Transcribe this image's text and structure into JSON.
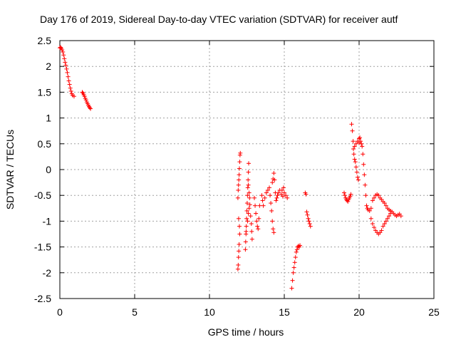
{
  "chart_data": {
    "type": "scatter",
    "title": "Day 176 of 2019, Sidereal Day-to-day VTEC variation (SDTVAR) for receiver autf",
    "xlabel": "GPS time / hours",
    "ylabel": "SDTVAR / TECUs",
    "xlim": [
      0,
      25
    ],
    "ylim": [
      -2.5,
      2.5
    ],
    "x_ticks": [
      0,
      5,
      10,
      15,
      20,
      25
    ],
    "y_ticks": [
      2.5,
      2,
      1.5,
      1,
      0.5,
      0,
      -0.5,
      -1,
      -1.5,
      -2,
      -2.5
    ],
    "x_tick_labels": [
      "0",
      "5",
      "10",
      "15",
      "20",
      "25"
    ],
    "y_tick_labels": [
      "2.5",
      "2",
      "1.5",
      "1",
      "0.5",
      "0",
      "-0.5",
      "-1",
      "-1.5",
      "-2",
      "-2.5"
    ],
    "grid": true,
    "marker": "+",
    "marker_color": "#ff0000",
    "series": [
      {
        "name": "SDTVAR",
        "points": [
          [
            0.0,
            2.36
          ],
          [
            0.05,
            2.37
          ],
          [
            0.1,
            2.35
          ],
          [
            0.15,
            2.32
          ],
          [
            0.2,
            2.28
          ],
          [
            0.25,
            2.22
          ],
          [
            0.3,
            2.15
          ],
          [
            0.35,
            2.08
          ],
          [
            0.4,
            2.02
          ],
          [
            0.45,
            1.95
          ],
          [
            0.5,
            1.88
          ],
          [
            0.55,
            1.8
          ],
          [
            0.6,
            1.72
          ],
          [
            0.65,
            1.65
          ],
          [
            0.7,
            1.58
          ],
          [
            0.75,
            1.52
          ],
          [
            0.8,
            1.47
          ],
          [
            0.85,
            1.44
          ],
          [
            0.95,
            1.42
          ],
          [
            1.5,
            1.5
          ],
          [
            1.55,
            1.48
          ],
          [
            1.6,
            1.45
          ],
          [
            1.65,
            1.42
          ],
          [
            1.7,
            1.38
          ],
          [
            1.75,
            1.35
          ],
          [
            1.8,
            1.31
          ],
          [
            1.85,
            1.28
          ],
          [
            1.9,
            1.25
          ],
          [
            1.95,
            1.22
          ],
          [
            2.0,
            1.2
          ],
          [
            2.05,
            1.18
          ],
          [
            11.9,
            -1.93
          ],
          [
            11.92,
            -1.85
          ],
          [
            11.94,
            -1.7
          ],
          [
            11.96,
            -1.58
          ],
          [
            11.98,
            -1.45
          ],
          [
            11.9,
            -0.55
          ],
          [
            11.92,
            -0.4
          ],
          [
            11.94,
            -0.3
          ],
          [
            11.96,
            -0.2
          ],
          [
            11.98,
            -0.1
          ],
          [
            12.0,
            0.02
          ],
          [
            12.02,
            0.15
          ],
          [
            12.04,
            0.28
          ],
          [
            12.06,
            0.32
          ],
          [
            11.95,
            -0.95
          ],
          [
            12.0,
            -1.1
          ],
          [
            12.02,
            -1.25
          ],
          [
            12.4,
            -1.55
          ],
          [
            12.42,
            -1.4
          ],
          [
            12.44,
            -1.25
          ],
          [
            12.46,
            -1.1
          ],
          [
            12.48,
            -0.95
          ],
          [
            12.5,
            -0.8
          ],
          [
            12.52,
            -0.65
          ],
          [
            12.54,
            -0.5
          ],
          [
            12.56,
            -0.35
          ],
          [
            12.58,
            -0.2
          ],
          [
            12.6,
            -0.05
          ],
          [
            12.62,
            0.12
          ],
          [
            12.45,
            -1.2
          ],
          [
            12.55,
            -1.0
          ],
          [
            12.6,
            -0.85
          ],
          [
            12.65,
            -0.75
          ],
          [
            12.7,
            -0.68
          ],
          [
            12.75,
            -0.9
          ],
          [
            12.8,
            -1.05
          ],
          [
            12.82,
            -1.2
          ],
          [
            12.85,
            -1.35
          ],
          [
            12.6,
            -0.3
          ],
          [
            12.65,
            -0.45
          ],
          [
            12.68,
            -0.55
          ],
          [
            13.0,
            -0.55
          ],
          [
            13.05,
            -0.7
          ],
          [
            13.1,
            -0.85
          ],
          [
            13.15,
            -1.0
          ],
          [
            13.2,
            -1.1
          ],
          [
            13.25,
            -1.15
          ],
          [
            13.3,
            -0.95
          ],
          [
            13.35,
            -0.7
          ],
          [
            13.5,
            -0.5
          ],
          [
            13.55,
            -0.6
          ],
          [
            13.6,
            -0.7
          ],
          [
            13.7,
            -0.55
          ],
          [
            13.8,
            -0.45
          ],
          [
            13.9,
            -0.4
          ],
          [
            14.0,
            -0.35
          ],
          [
            14.05,
            -0.5
          ],
          [
            14.1,
            -0.65
          ],
          [
            14.15,
            -0.8
          ],
          [
            14.2,
            -1.0
          ],
          [
            14.25,
            -1.15
          ],
          [
            14.3,
            -1.22
          ],
          [
            14.2,
            -0.25
          ],
          [
            14.25,
            -0.18
          ],
          [
            14.3,
            -0.07
          ],
          [
            14.35,
            -0.2
          ],
          [
            14.4,
            -0.45
          ],
          [
            14.45,
            -0.6
          ],
          [
            14.5,
            -0.55
          ],
          [
            14.55,
            -0.5
          ],
          [
            14.6,
            -0.45
          ],
          [
            14.7,
            -0.4
          ],
          [
            14.8,
            -0.48
          ],
          [
            14.9,
            -0.52
          ],
          [
            15.0,
            -0.45
          ],
          [
            15.1,
            -0.5
          ],
          [
            15.2,
            -0.55
          ],
          [
            14.85,
            -0.4
          ],
          [
            14.95,
            -0.35
          ],
          [
            15.5,
            -2.3
          ],
          [
            15.55,
            -2.15
          ],
          [
            15.6,
            -2.0
          ],
          [
            15.65,
            -1.9
          ],
          [
            15.7,
            -1.8
          ],
          [
            15.75,
            -1.7
          ],
          [
            15.8,
            -1.6
          ],
          [
            15.85,
            -1.55
          ],
          [
            15.9,
            -1.5
          ],
          [
            15.95,
            -1.48
          ],
          [
            16.0,
            -1.5
          ],
          [
            16.05,
            -1.47
          ],
          [
            16.4,
            -0.45
          ],
          [
            16.45,
            -0.48
          ],
          [
            16.5,
            -0.82
          ],
          [
            16.55,
            -0.88
          ],
          [
            16.6,
            -0.95
          ],
          [
            16.65,
            -1.0
          ],
          [
            16.7,
            -1.05
          ],
          [
            16.75,
            -1.1
          ],
          [
            19.0,
            -0.45
          ],
          [
            19.05,
            -0.5
          ],
          [
            19.1,
            -0.55
          ],
          [
            19.15,
            -0.58
          ],
          [
            19.2,
            -0.6
          ],
          [
            19.25,
            -0.62
          ],
          [
            19.3,
            -0.58
          ],
          [
            19.35,
            -0.55
          ],
          [
            19.4,
            -0.52
          ],
          [
            19.45,
            -0.48
          ],
          [
            19.5,
            0.88
          ],
          [
            19.55,
            0.75
          ],
          [
            19.6,
            0.55
          ],
          [
            19.62,
            0.4
          ],
          [
            19.65,
            0.3
          ],
          [
            19.7,
            0.2
          ],
          [
            19.75,
            0.15
          ],
          [
            19.8,
            0.05
          ],
          [
            19.85,
            -0.05
          ],
          [
            19.9,
            -0.15
          ],
          [
            19.95,
            -0.2
          ],
          [
            20.0,
            0.6
          ],
          [
            20.05,
            0.62
          ],
          [
            20.1,
            0.55
          ],
          [
            20.15,
            0.5
          ],
          [
            20.2,
            0.45
          ],
          [
            20.25,
            0.3
          ],
          [
            20.3,
            0.1
          ],
          [
            20.35,
            -0.1
          ],
          [
            20.4,
            -0.3
          ],
          [
            20.45,
            -0.5
          ],
          [
            20.5,
            -0.7
          ],
          [
            20.55,
            -0.75
          ],
          [
            20.6,
            -0.78
          ],
          [
            20.7,
            -0.8
          ],
          [
            20.8,
            -0.75
          ],
          [
            20.9,
            -0.6
          ],
          [
            21.0,
            -0.55
          ],
          [
            21.1,
            -0.5
          ],
          [
            21.2,
            -0.48
          ],
          [
            21.3,
            -0.5
          ],
          [
            21.4,
            -0.55
          ],
          [
            21.5,
            -0.58
          ],
          [
            21.6,
            -0.62
          ],
          [
            21.7,
            -0.65
          ],
          [
            21.8,
            -0.7
          ],
          [
            21.9,
            -0.75
          ],
          [
            22.0,
            -0.78
          ],
          [
            22.1,
            -0.8
          ],
          [
            22.2,
            -0.82
          ],
          [
            22.3,
            -0.85
          ],
          [
            22.4,
            -0.88
          ],
          [
            22.5,
            -0.9
          ],
          [
            22.6,
            -0.88
          ],
          [
            22.7,
            -0.86
          ],
          [
            22.8,
            -0.9
          ],
          [
            20.8,
            -0.95
          ],
          [
            20.9,
            -1.05
          ],
          [
            21.0,
            -1.12
          ],
          [
            21.1,
            -1.18
          ],
          [
            21.2,
            -1.22
          ],
          [
            21.3,
            -1.25
          ],
          [
            21.4,
            -1.22
          ],
          [
            21.5,
            -1.18
          ],
          [
            21.6,
            -1.1
          ],
          [
            21.7,
            -1.05
          ],
          [
            21.8,
            -1.0
          ],
          [
            21.9,
            -0.95
          ],
          [
            22.0,
            -0.9
          ],
          [
            22.1,
            -0.85
          ],
          [
            19.8,
            0.5
          ],
          [
            19.9,
            0.55
          ],
          [
            20.0,
            0.52
          ],
          [
            19.7,
            0.45
          ]
        ]
      }
    ]
  }
}
